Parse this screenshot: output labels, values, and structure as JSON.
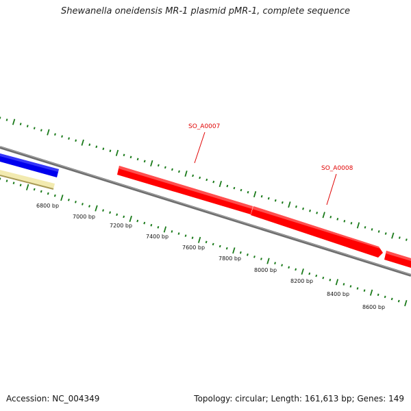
{
  "header": {
    "title": "Shewanella oneidensis MR-1 plasmid pMR-1, complete sequence"
  },
  "footer": {
    "accession": "Accession: NC_004349",
    "summary": "Topology: circular; Length: 161,613 bp; Genes: 149"
  },
  "colors": {
    "backbone": "#7a7a7a",
    "gene_forward": "#ff0000",
    "gene_blue": "#0000ee",
    "gene_yellow": "#f2eab0",
    "ticks": "#1a7a1a",
    "label_red": "#e00000"
  },
  "ruler": {
    "labels": [
      "6800 bp",
      "7000 bp",
      "7200 bp",
      "7400 bp",
      "7600 bp",
      "7800 bp",
      "8000 bp",
      "8200 bp",
      "8400 bp",
      "8600 bp"
    ]
  },
  "genes": [
    {
      "name": "SO_A0007",
      "strand": "+",
      "color": "red"
    },
    {
      "name": "SO_A0008",
      "strand": "+",
      "color": "red"
    }
  ]
}
